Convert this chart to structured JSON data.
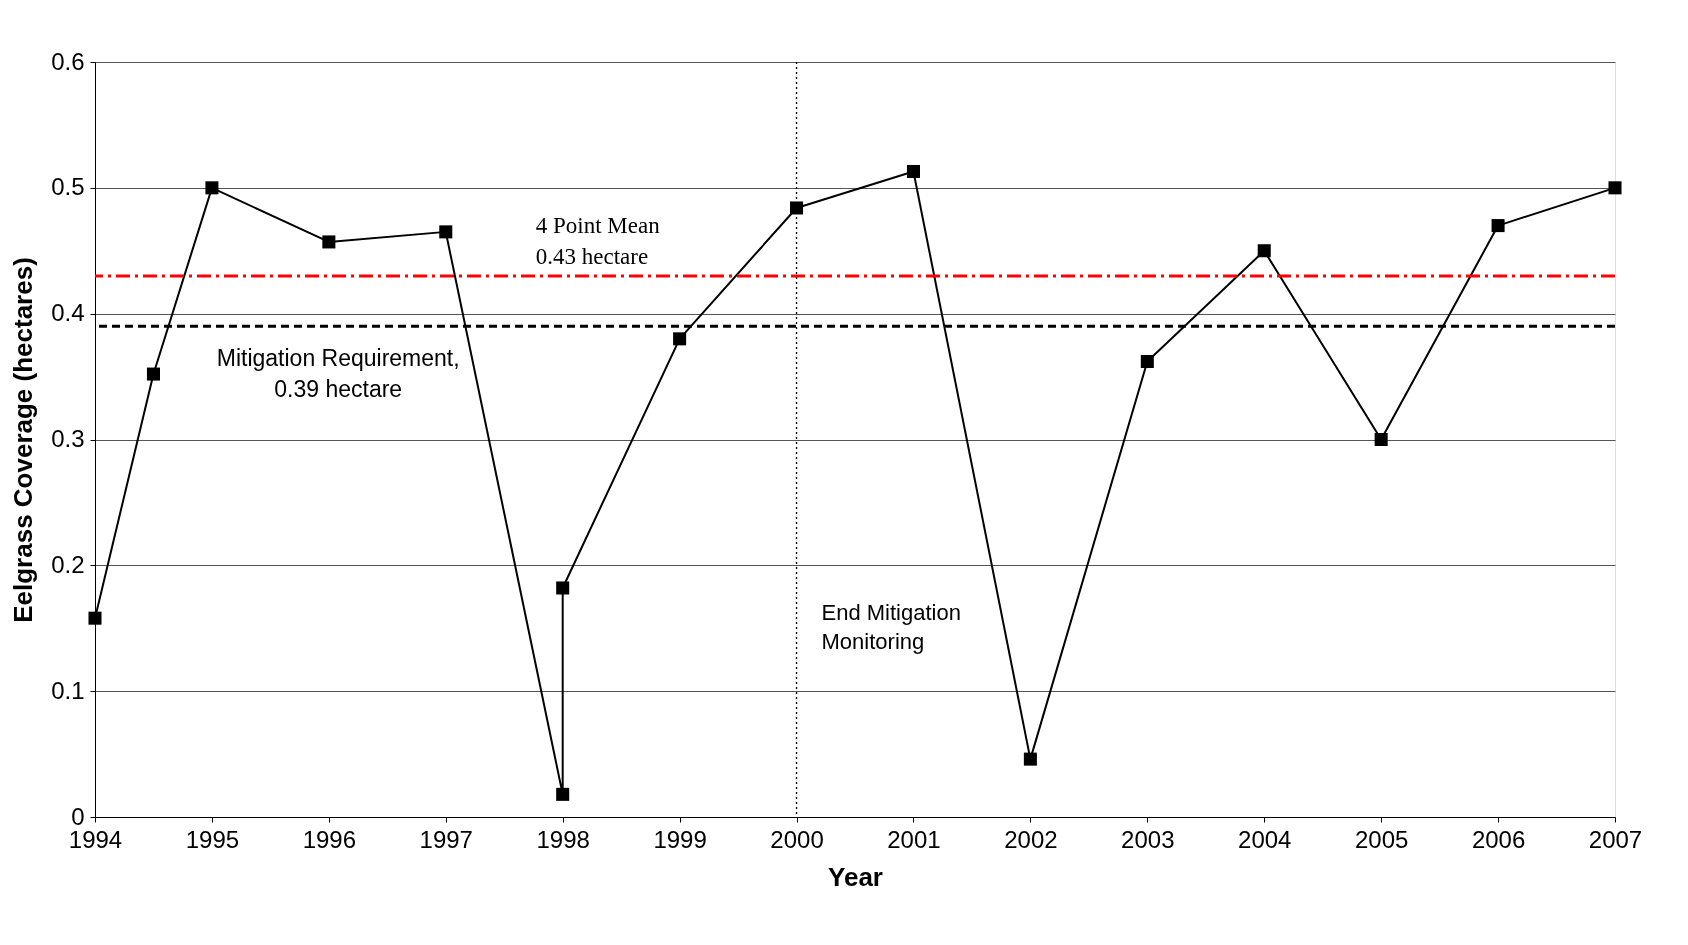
{
  "chart_data": {
    "type": "line",
    "xlabel": "Year",
    "ylabel": "Eelgrass Coverage (hectares)",
    "x": [
      1994,
      1994.5,
      1995,
      1996,
      1997,
      1998,
      1998,
      1999,
      2000,
      2001,
      2002,
      2003,
      2004,
      2005,
      2006,
      2007
    ],
    "series": [
      {
        "color": "#000000",
        "values": [
          0.158,
          0.352,
          0.5,
          0.457,
          0.465,
          0.018,
          0.182,
          0.38,
          0.484,
          0.513,
          0.046,
          0.362,
          0.45,
          0.3,
          0.47,
          0.5
        ]
      }
    ],
    "xlim": [
      1994,
      2007
    ],
    "xticks": [
      1994,
      1995,
      1996,
      1997,
      1998,
      1999,
      2000,
      2001,
      2002,
      2003,
      2004,
      2005,
      2006,
      2007
    ],
    "ylim": [
      0,
      0.6
    ],
    "yticks": [
      0,
      0.1,
      0.2,
      0.3,
      0.4,
      0.5,
      0.6
    ],
    "ref_lines": [
      {
        "axis": "y",
        "value": 0.43,
        "label": "4 Point Mean\n0.43 hectare",
        "color": "#ff0000",
        "line_style": "dashdot"
      },
      {
        "axis": "y",
        "value": 0.39,
        "label": "Mitigation Requirement,\n0.39 hectare",
        "color": "#000000",
        "line_style": "dashed"
      },
      {
        "axis": "x",
        "value": 2000,
        "label": "End Mitigation\nMonitoring",
        "color": "#000000",
        "line_style": "dotted"
      }
    ],
    "grid": "y",
    "marker": "square",
    "line_style": "solid"
  }
}
